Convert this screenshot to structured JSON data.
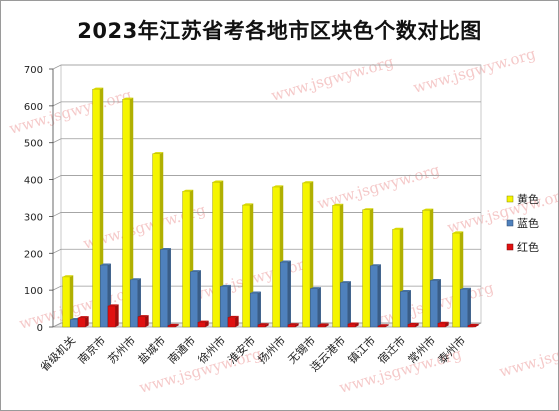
{
  "chart_data": {
    "type": "bar",
    "title": "2023年江苏省考各地市区块色个数对比图",
    "categories": [
      "省级机关",
      "南京市",
      "苏州市",
      "盐城市",
      "南通市",
      "徐州市",
      "淮安市",
      "扬州市",
      "无锡市",
      "连云港市",
      "镇江市",
      "宿迁市",
      "常州市",
      "泰州市"
    ],
    "series": [
      {
        "name": "黄色",
        "color": "#f5f500",
        "values": [
          136,
          645,
          618,
          470,
          368,
          393,
          331,
          380,
          391,
          330,
          318,
          265,
          317,
          255
        ]
      },
      {
        "name": "蓝色",
        "color": "#4f81bd",
        "values": [
          20,
          168,
          128,
          210,
          150,
          110,
          92,
          176,
          104,
          120,
          166,
          96,
          126,
          102
        ]
      },
      {
        "name": "红色",
        "color": "#e01010",
        "values": [
          25,
          57,
          28,
          4,
          13,
          26,
          6,
          6,
          5,
          8,
          3,
          7,
          10,
          4
        ]
      }
    ],
    "ylim": [
      0,
      700
    ],
    "yticks": [
      0,
      100,
      200,
      300,
      400,
      500,
      600,
      700
    ],
    "grid": true,
    "legend_position": "right",
    "watermark": "www.jsgwyw.org"
  }
}
